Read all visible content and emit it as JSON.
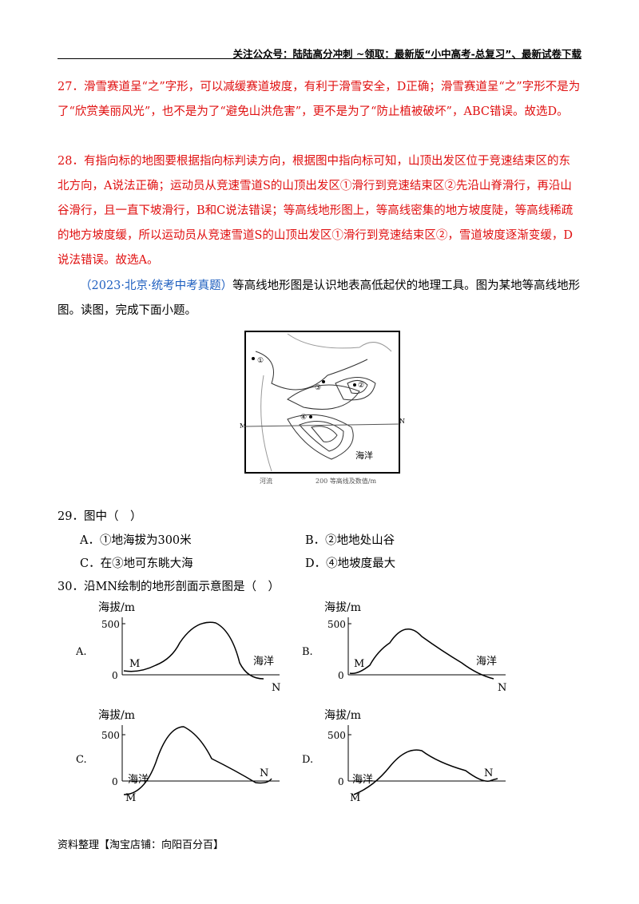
{
  "header": "关注公众号：陆陆高分冲刺  ~领取：最新版“小中高考-总复习”、最新试卷下载",
  "answers": [
    "27．滑雪赛道呈“之”字形，可以减缓赛道坡度，有利于滑雪安全，D正确；滑雪赛道呈“之”字形不是为了“欣赏美丽风光”，也不是为了“避免山洪危害”，更不是为了“防止植被破坏”，ABC错误。故选D。",
    "28．有指向标的地图要根据指向标判读方向，根据图中指向标可知，山顶出发区位于竞速结束区的东北方向，A说法正确；运动员从竞速雪道S的山顶出发区①滑行到竞速结束区②先沿山脊滑行，再沿山谷滑行，且一直下坡滑行，B和C说法错误；等高线地形图上，等高线密集的地方坡度陡，等高线稀疏的地方坡度缓，所以运动员从竞速雪道S的山顶出发区①滑行到竞速结束区②，雪道坡度逐渐变缓，D说法错误。故选A。"
  ],
  "intro_source": "（2023·北京·统考中考真题）",
  "intro_text": "等高线地形图是认识地表高低起伏的地理工具。图为某地等高线地形图。读图，完成下面小题。",
  "map": {
    "sea_label": "海洋",
    "M": "M",
    "N": "N",
    "points": [
      "①",
      "②",
      "③",
      "④"
    ],
    "legend_river": "河流",
    "legend_contour": "200 等高线及数值/m",
    "contour_values": [
      "100",
      "200",
      "300",
      "400",
      "500"
    ]
  },
  "q29": {
    "stem": "29．图中（　）",
    "options": [
      "A．①地海拔为300米",
      "B．②地地处山谷",
      "C．在③地可东眺大海",
      "D．④地坡度最大"
    ]
  },
  "q30": {
    "stem": "30．沿MN绘制的地形剖面示意图是（　）",
    "profiles": [
      {
        "letter": "A.",
        "ylabel": "海拔/m",
        "y500": "500",
        "y0": "0",
        "M": "M",
        "N": "N",
        "sea": "海洋"
      },
      {
        "letter": "B.",
        "ylabel": "海拔/m",
        "y500": "500",
        "y0": "0",
        "M": "M",
        "N": "N",
        "sea": "海洋"
      },
      {
        "letter": "C.",
        "ylabel": "海拔/m",
        "y500": "500",
        "y0": "0",
        "M": "M",
        "N": "N",
        "sea": "海洋"
      },
      {
        "letter": "D.",
        "ylabel": "海拔/m",
        "y500": "500",
        "y0": "0",
        "M": "M",
        "N": "N",
        "sea": "海洋"
      }
    ]
  },
  "footer": "资料整理【淘宝店铺：向阳百分百】"
}
